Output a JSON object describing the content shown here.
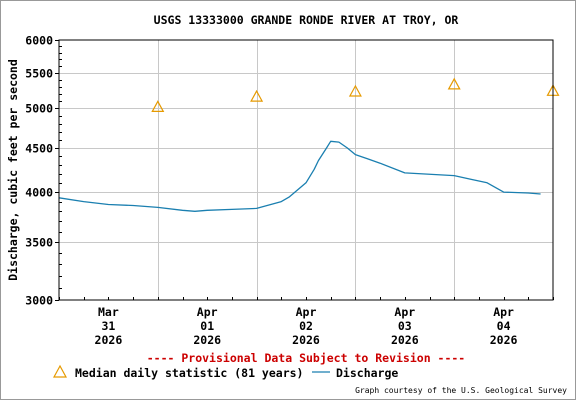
{
  "chart_data": {
    "type": "line",
    "title": "USGS 13333000 GRANDE RONDE RIVER AT TROY, OR",
    "ylabel": "Discharge, cubic feet per second",
    "xlabel": "",
    "y_scale": "log",
    "ylim": [
      3000,
      6000
    ],
    "y_ticks": [
      3000,
      3500,
      4000,
      4500,
      5000,
      5500,
      6000
    ],
    "y_tick_labels": [
      "3000",
      "3500",
      "4000",
      "4500",
      "5000",
      "5500",
      "6000"
    ],
    "x_range_days": [
      -0.5,
      4.5
    ],
    "x_ticks": [
      {
        "day": 0,
        "month": "Mar",
        "date": "31",
        "year": "2026"
      },
      {
        "day": 1,
        "month": "Apr",
        "date": "01",
        "year": "2026"
      },
      {
        "day": 2,
        "month": "Apr",
        "date": "02",
        "year": "2026"
      },
      {
        "day": 3,
        "month": "Apr",
        "date": "03",
        "year": "2026"
      },
      {
        "day": 4,
        "month": "Apr",
        "date": "04",
        "year": "2026"
      }
    ],
    "grid": true,
    "series": [
      {
        "name": "Median daily statistic (81 years)",
        "kind": "triangle-markers",
        "color": "#e69a00",
        "points": [
          {
            "date": "2026-03-31",
            "y": 5020
          },
          {
            "date": "2026-04-01",
            "y": 5160
          },
          {
            "date": "2026-04-02",
            "y": 5230
          },
          {
            "date": "2026-04-03",
            "y": 5330
          },
          {
            "date": "2026-04-04",
            "y": 5240
          }
        ]
      },
      {
        "name": "Discharge",
        "kind": "line",
        "color": "#1a7fb0",
        "points": [
          {
            "date": "2026-03-30 12:00",
            "y": 3940
          },
          {
            "date": "2026-03-30 18:00",
            "y": 3900
          },
          {
            "date": "2026-03-31 00:00",
            "y": 3870
          },
          {
            "date": "2026-03-31 06:00",
            "y": 3860
          },
          {
            "date": "2026-03-31 12:00",
            "y": 3840
          },
          {
            "date": "2026-03-31 18:00",
            "y": 3810
          },
          {
            "date": "2026-03-31 21:00",
            "y": 3800
          },
          {
            "date": "2026-04-01 00:00",
            "y": 3810
          },
          {
            "date": "2026-04-01 06:00",
            "y": 3820
          },
          {
            "date": "2026-04-01 12:00",
            "y": 3830
          },
          {
            "date": "2026-04-01 18:00",
            "y": 3900
          },
          {
            "date": "2026-04-01 20:00",
            "y": 3950
          },
          {
            "date": "2026-04-02 00:00",
            "y": 4100
          },
          {
            "date": "2026-04-02 02:00",
            "y": 4250
          },
          {
            "date": "2026-04-02 03:00",
            "y": 4350
          },
          {
            "date": "2026-04-02 05:00",
            "y": 4500
          },
          {
            "date": "2026-04-02 06:00",
            "y": 4580
          },
          {
            "date": "2026-04-02 08:00",
            "y": 4570
          },
          {
            "date": "2026-04-02 10:00",
            "y": 4500
          },
          {
            "date": "2026-04-02 12:00",
            "y": 4420
          },
          {
            "date": "2026-04-02 15:00",
            "y": 4370
          },
          {
            "date": "2026-04-02 18:00",
            "y": 4320
          },
          {
            "date": "2026-04-03 00:00",
            "y": 4210
          },
          {
            "date": "2026-04-03 12:00",
            "y": 4180
          },
          {
            "date": "2026-04-03 16:00",
            "y": 4140
          },
          {
            "date": "2026-04-03 20:00",
            "y": 4100
          },
          {
            "date": "2026-04-04 00:00",
            "y": 4000
          },
          {
            "date": "2026-04-04 06:00",
            "y": 3990
          },
          {
            "date": "2026-04-04 09:00",
            "y": 3980
          }
        ]
      }
    ]
  },
  "notice": "---- Provisional Data Subject to Revision ----",
  "legend": {
    "median_label": "Median daily statistic (81 years)",
    "discharge_label": "Discharge"
  },
  "credit": "Graph courtesy of the U.S. Geological Survey",
  "colors": {
    "notice": "#cc0000",
    "grid": "#c8c8c8",
    "axis": "#000000",
    "median": "#e69a00",
    "discharge": "#1a7fb0"
  }
}
